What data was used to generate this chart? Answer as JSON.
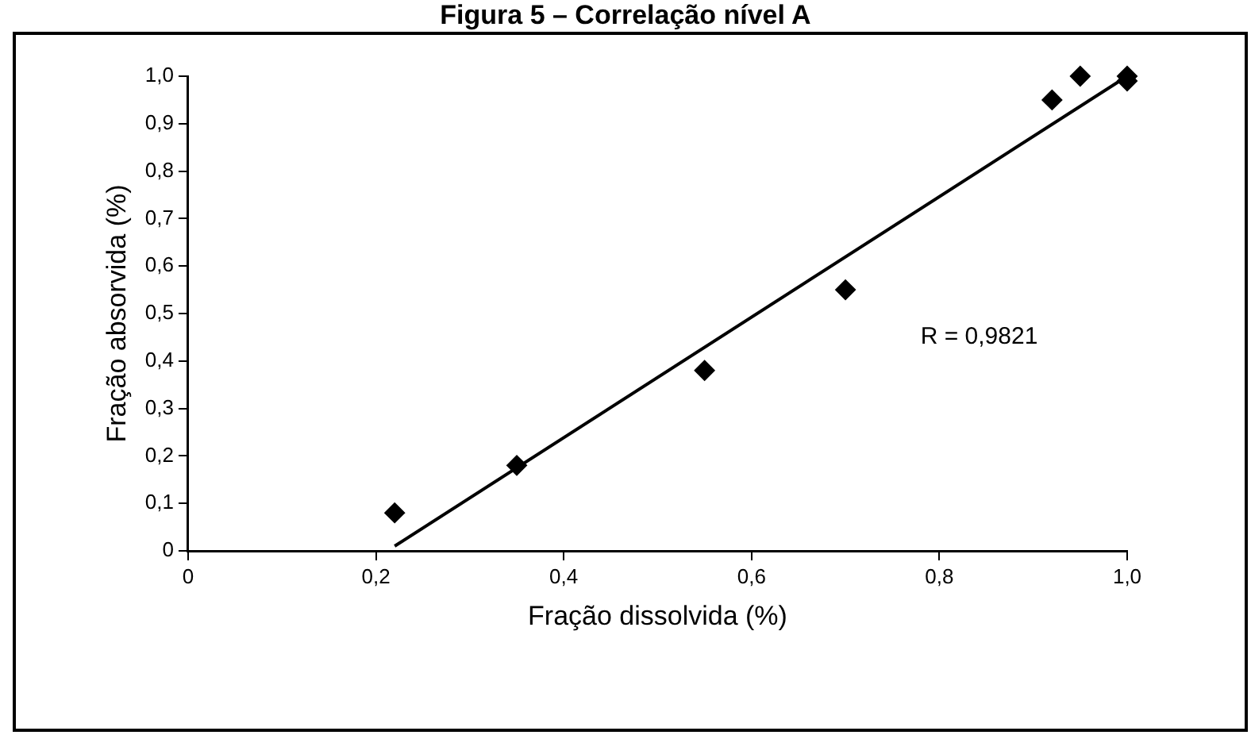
{
  "chart_data": {
    "type": "scatter",
    "title": "Figura 5 – Correlação nível A",
    "xlabel": "Fração dissolvida (%)",
    "ylabel": "Fração absorvida (%)",
    "annotations": [
      "R = 0,9821"
    ],
    "marker": "diamond",
    "grid": false,
    "legend": false,
    "xlim": [
      0,
      1
    ],
    "ylim": [
      0,
      1
    ],
    "xticks": [
      0,
      {
        "value": 0.2,
        "label": "0,2"
      },
      {
        "value": 0.4,
        "label": "0,4"
      },
      {
        "value": 0.6,
        "label": "0,6"
      },
      {
        "value": 0.8,
        "label": "0,8"
      },
      {
        "value": 1,
        "label": "1,0"
      }
    ],
    "yticks": [
      0,
      {
        "value": 0.1,
        "label": "0,1"
      },
      {
        "value": 0.2,
        "label": "0,2"
      },
      {
        "value": 0.3,
        "label": "0,3"
      },
      {
        "value": 0.4,
        "label": "0,4"
      },
      {
        "value": 0.5,
        "label": "0,5"
      },
      {
        "value": 0.6,
        "label": "0,6"
      },
      {
        "value": 0.7,
        "label": "0,7"
      },
      {
        "value": 0.8,
        "label": "0,8"
      },
      {
        "value": 0.9,
        "label": "0,9"
      },
      {
        "value": 1,
        "label": "1,0"
      }
    ],
    "series": [
      {
        "color": "#000000",
        "x": [
          0.22,
          0.35,
          0.55,
          0.7,
          0.92,
          0.95,
          1.0,
          1.0
        ],
        "values": [
          0.08,
          0.18,
          0.38,
          0.55,
          0.95,
          1.0,
          1.0,
          0.99
        ]
      },
      {
        "type": "line",
        "color": "#000000",
        "marker": "none",
        "x": [
          0.22,
          1.0
        ],
        "values": [
          0.01,
          1.0
        ]
      }
    ]
  }
}
